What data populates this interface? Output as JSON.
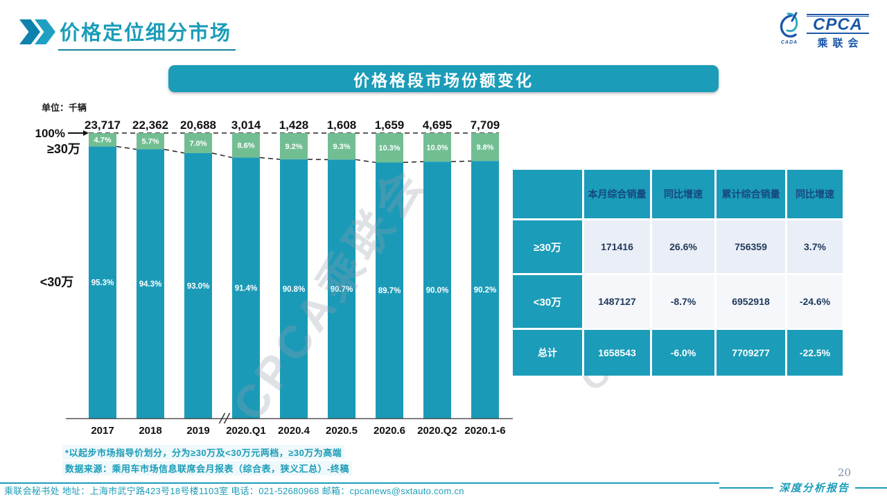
{
  "header": {
    "title": "价格定位细分市场",
    "logo": {
      "acronym": "CPCA",
      "cn": "乘联会",
      "emblem_text": "CADA"
    }
  },
  "banner": {
    "title": "价格格段市场份额变化"
  },
  "watermark": "CPCA乘联会",
  "chart_data": {
    "type": "bar",
    "stacked": true,
    "unit_label": "单位：千辆",
    "axis_top_label": "100%",
    "left_label_top": "≥30万",
    "left_label_bottom": "<30万",
    "categories": [
      "2017",
      "2018",
      "2019",
      "2020.Q1",
      "2020.4",
      "2020.5",
      "2020.6",
      "2020.Q2",
      "2020.1-6"
    ],
    "totals": [
      "23,717",
      "22,362",
      "20,688",
      "3,014",
      "1,428",
      "1,608",
      "1,659",
      "4,695",
      "7,709"
    ],
    "series": [
      {
        "name": "≥30万",
        "color": "#72BE93",
        "values": [
          4.7,
          5.7,
          7.0,
          8.6,
          9.2,
          9.3,
          10.3,
          10.0,
          9.8
        ]
      },
      {
        "name": "<30万",
        "color": "#1B9AB8",
        "values": [
          95.3,
          94.3,
          93.0,
          91.4,
          90.8,
          90.7,
          89.7,
          90.0,
          90.2
        ]
      }
    ],
    "ylim": [
      0,
      100
    ],
    "axis_break_after_index": 2,
    "grid": false,
    "legend": "none"
  },
  "table": {
    "columns": [
      "本月综合销量",
      "同比增速",
      "累计综合销量",
      "同比增速"
    ],
    "rows": [
      {
        "label": "≥30万",
        "values": [
          "171416",
          "26.6%",
          "756359",
          "3.7%"
        ],
        "total": false
      },
      {
        "label": "<30万",
        "values": [
          "1487127",
          "-8.7%",
          "6952918",
          "-24.6%"
        ],
        "total": false
      },
      {
        "label": "总计",
        "values": [
          "1658543",
          "-6.0%",
          "7709277",
          "-22.5%"
        ],
        "total": true
      }
    ]
  },
  "footnotes": [
    "*以起步市场指导价划分，分为≥30万及<30万元两档，≥30万为高端",
    "数据来源：乘用车市场信息联席会月报表（综合表，狭义汇总）-终稿"
  ],
  "footer": {
    "left": "乘联会秘书处  地址：上海市武宁路423号18号楼1103室  电话：021-52680968  邮箱：cpcanews@sxtauto.com.cn",
    "page": "20",
    "report_label": "深度分析报告"
  },
  "colors": {
    "teal": "#1B9CB8",
    "bar_teal": "#1B9AB8",
    "bar_green": "#72BE93",
    "navy": "#17477E",
    "value_text": "#203A5C",
    "dash": "#222222"
  }
}
